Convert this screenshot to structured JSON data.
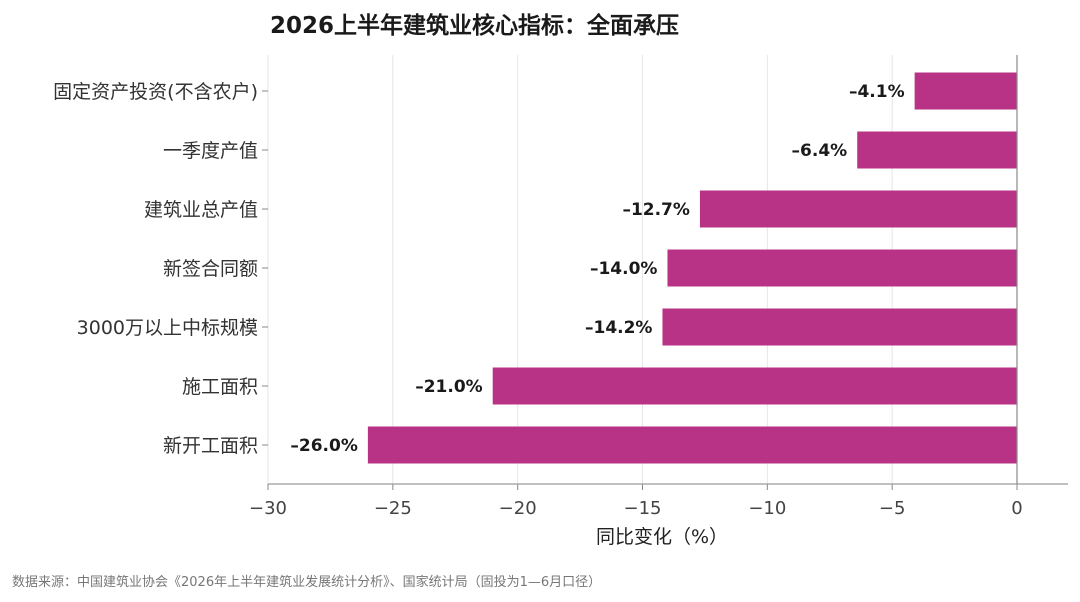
{
  "chart_data": {
    "type": "bar",
    "orientation": "horizontal",
    "title": "2026上半年建筑业核心指标：全面承压",
    "xlabel": "同比变化（%）",
    "ylabel": "",
    "categories": [
      "固定资产投资(不含农户)",
      "一季度产值",
      "建筑业总产值",
      "新签合同额",
      "3000万以上中标规模",
      "施工面积",
      "新开工面积"
    ],
    "values": [
      -4.1,
      -6.4,
      -12.7,
      -14.0,
      -14.2,
      -21.0,
      -26.0
    ],
    "data_labels": [
      "–4.1%",
      "–6.4%",
      "–12.7%",
      "–14.0%",
      "–14.2%",
      "–21.0%",
      "–26.0%"
    ],
    "xlim": [
      -30,
      0
    ],
    "xticks": [
      -30,
      -25,
      -20,
      -15,
      -10,
      -5,
      0
    ],
    "xtick_labels": [
      "−30",
      "−25",
      "−20",
      "−15",
      "−10",
      "−5",
      "0"
    ],
    "grid": "vertical",
    "legend": "none",
    "bar_color": "#b83385",
    "source": "数据来源：中国建筑业协会《2026年上半年建筑业发展统计分析》、国家统计局（固投为1—6月口径）"
  }
}
